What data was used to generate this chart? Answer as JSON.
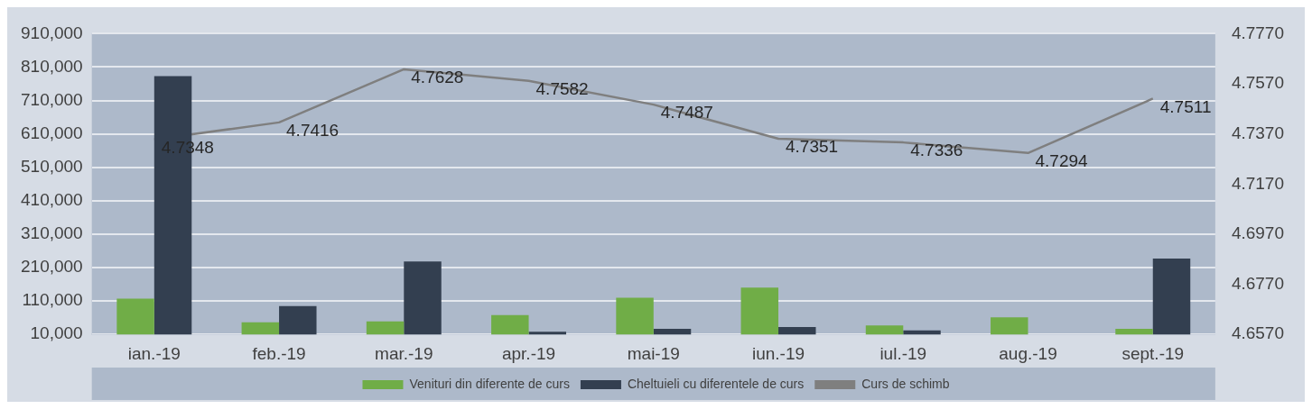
{
  "chart_data": {
    "type": "bar",
    "categories": [
      "ian.-19",
      "feb.-19",
      "mar.-19",
      "apr.-19",
      "mai-19",
      "iun.-19",
      "iul.-19",
      "aug.-19",
      "sept.-19"
    ],
    "series": [
      {
        "name": "Venituri din diferente de curs",
        "color": "#70ad47",
        "values": [
          117000,
          46000,
          49000,
          68000,
          120000,
          150000,
          37000,
          61000,
          27000
        ]
      },
      {
        "name": "Cheltuieli cu diferentele de curs",
        "color": "#333f50",
        "values": [
          783000,
          95000,
          228000,
          18000,
          27000,
          32000,
          22000,
          null,
          237000
        ]
      },
      {
        "name": "Curs de schimb",
        "type": "line",
        "axis": "y2",
        "color": "#7f7f7f",
        "values": [
          4.7348,
          4.7416,
          4.7628,
          4.7582,
          4.7487,
          4.7351,
          4.7336,
          4.7294,
          4.7511
        ],
        "value_labels": [
          "4.7348",
          "4.7416",
          "4.7628",
          "4.7582",
          "4.7487",
          "4.7351",
          "4.7336",
          "4.7294",
          "4.7511"
        ]
      }
    ],
    "ylim": [
      10000,
      910000
    ],
    "yticks": [
      {
        "value": 10000,
        "label": "10,000"
      },
      {
        "value": 110000,
        "label": "110,000"
      },
      {
        "value": 210000,
        "label": "210,000"
      },
      {
        "value": 310000,
        "label": "310,000"
      },
      {
        "value": 410000,
        "label": "410,000"
      },
      {
        "value": 510000,
        "label": "510,000"
      },
      {
        "value": 610000,
        "label": "610,000"
      },
      {
        "value": 710000,
        "label": "710,000"
      },
      {
        "value": 810000,
        "label": "810,000"
      },
      {
        "value": 910000,
        "label": "910,000"
      }
    ],
    "y2lim": [
      4.657,
      4.777
    ],
    "y2ticks": [
      {
        "value": 4.657,
        "label": "4.6570"
      },
      {
        "value": 4.677,
        "label": "4.6770"
      },
      {
        "value": 4.697,
        "label": "4.6970"
      },
      {
        "value": 4.717,
        "label": "4.7170"
      },
      {
        "value": 4.737,
        "label": "4.7370"
      },
      {
        "value": 4.757,
        "label": "4.7570"
      },
      {
        "value": 4.777,
        "label": "4.7770"
      }
    ],
    "grid": "y",
    "legend": "bottom",
    "marker": "none"
  }
}
